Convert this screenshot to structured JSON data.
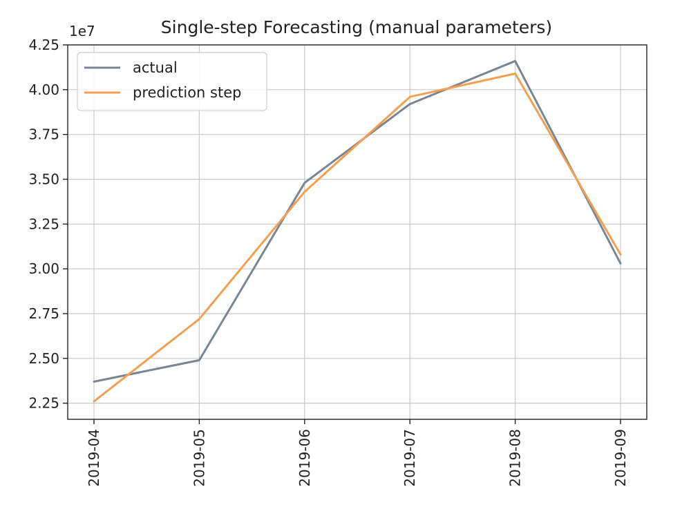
{
  "chart_data": {
    "type": "line",
    "title": "Single-step Forecasting (manual parameters)",
    "xlabel": "",
    "ylabel": "",
    "y_offset_label": "1e7",
    "x": [
      "2019-04",
      "2019-05",
      "2019-06",
      "2019-07",
      "2019-08",
      "2019-09"
    ],
    "x_tick_labels": [
      "2019-04",
      "2019-05",
      "2019-06",
      "2019-07",
      "2019-08",
      "2019-09"
    ],
    "y_ticks": [
      2.25,
      2.5,
      2.75,
      3.0,
      3.25,
      3.5,
      3.75,
      4.0,
      4.25
    ],
    "y_tick_labels": [
      "2.25",
      "2.50",
      "2.75",
      "3.00",
      "3.25",
      "3.50",
      "3.75",
      "4.00",
      "4.25"
    ],
    "ylim": [
      2.16,
      4.25
    ],
    "grid": true,
    "legend_position": "top-left",
    "series": [
      {
        "name": "actual",
        "color": "#7a8590",
        "values": [
          2.37,
          2.49,
          3.48,
          3.92,
          4.16,
          3.03
        ]
      },
      {
        "name": "prediction step",
        "color": "#f0a050",
        "values": [
          2.26,
          2.72,
          3.43,
          3.96,
          4.09,
          3.08
        ]
      }
    ]
  }
}
